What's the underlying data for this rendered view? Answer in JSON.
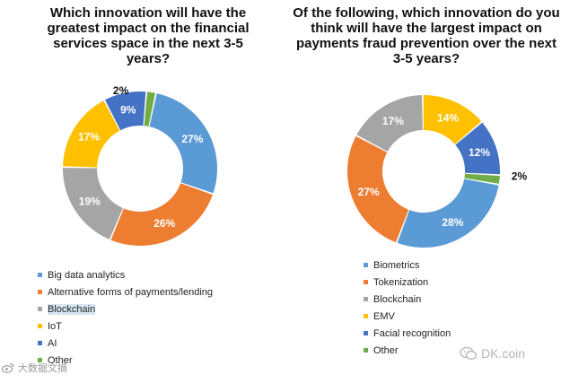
{
  "chart_data": [
    {
      "type": "pie",
      "title": "Which innovation will have the greatest impact on the financial services space in the next 3-5 years?",
      "categories": [
        "Big data analytics",
        "Alternative forms of payments/lending",
        "Blockchain",
        "IoT",
        "AI",
        "Other"
      ],
      "values": [
        27,
        26,
        19,
        17,
        9,
        2
      ],
      "labels": [
        "27%",
        "26%",
        "19%",
        "17%",
        "9%",
        "2%"
      ],
      "colors": [
        "#5b9bd5",
        "#ed7d31",
        "#a5a5a5",
        "#ffc000",
        "#4472c4",
        "#70ad47"
      ],
      "legend_position": "bottom-left"
    },
    {
      "type": "pie",
      "title": "Of the following, which innovation do you think will have the largest impact on payments fraud prevention over the next 3-5 years?",
      "categories": [
        "Biometrics",
        "Tokenization",
        "Blockchain",
        "EMV",
        "Facial recognition",
        "Other"
      ],
      "values": [
        28,
        27,
        17,
        14,
        12,
        2
      ],
      "labels": [
        "28%",
        "27%",
        "17%",
        "14%",
        "12%",
        "2%"
      ],
      "colors": [
        "#5b9bd5",
        "#ed7d31",
        "#a5a5a5",
        "#ffc000",
        "#4472c4",
        "#70ad47"
      ],
      "legend_position": "bottom"
    }
  ],
  "watermarks": {
    "left": "大数据文摘",
    "right": "DK.coin"
  }
}
